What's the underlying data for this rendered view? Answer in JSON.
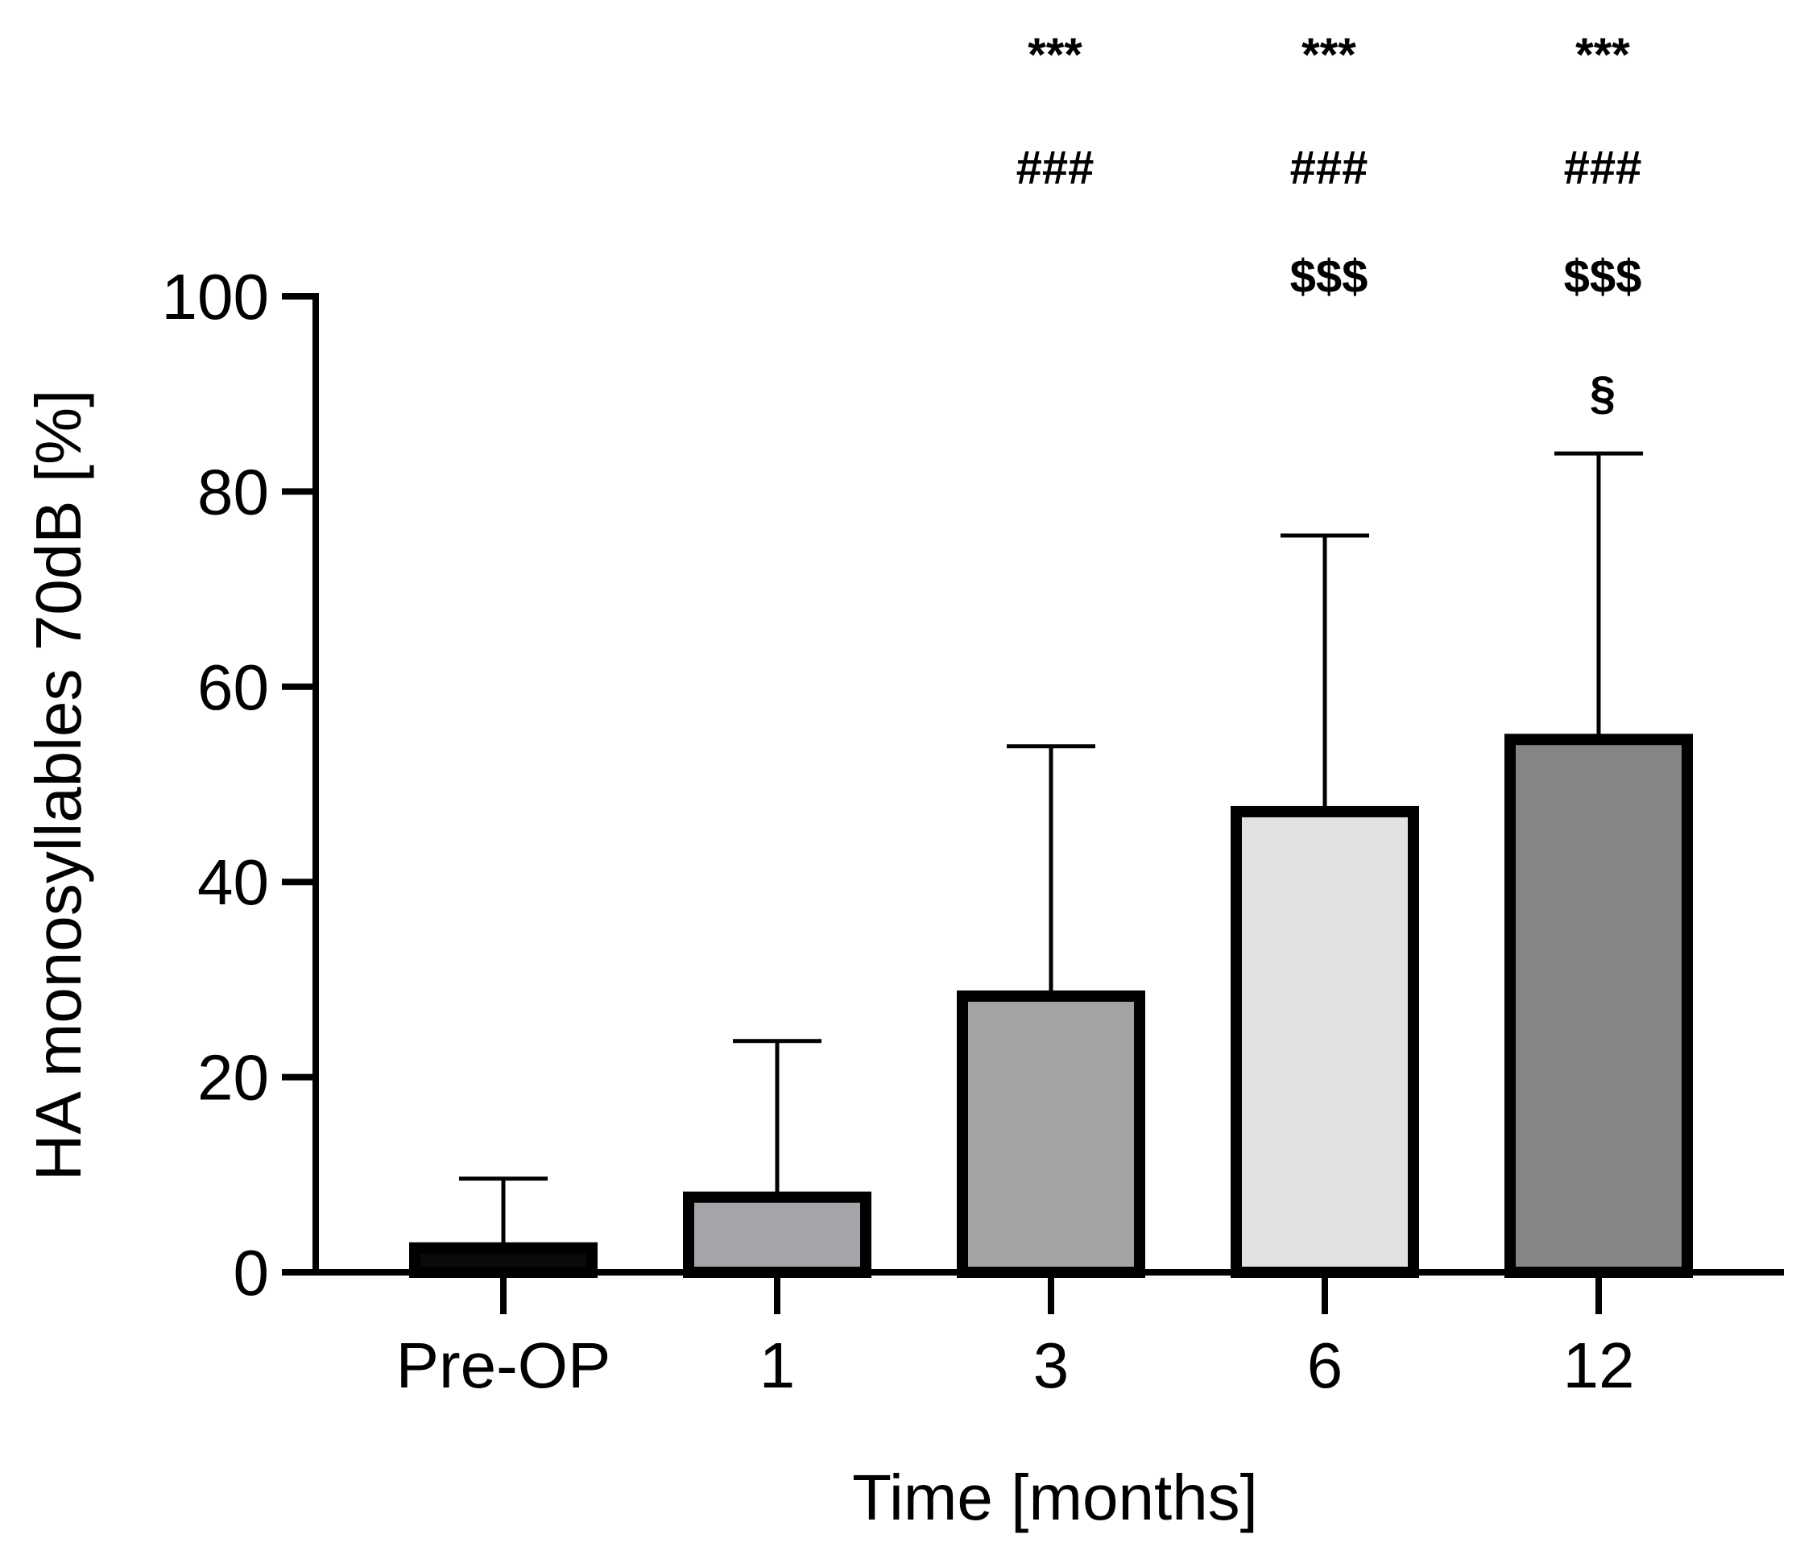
{
  "chart_data": {
    "type": "bar",
    "title": "",
    "xlabel": "Time [months]",
    "ylabel": "HA monosyllables 70dB [%]",
    "ylim": [
      0,
      100
    ],
    "yticks": [
      0,
      20,
      40,
      60,
      80,
      100
    ],
    "categories": [
      "Pre-OP",
      "1",
      "3",
      "6",
      "12"
    ],
    "values": [
      2.5,
      7.7,
      28.3,
      47.2,
      54.6
    ],
    "error_upper": [
      9.6,
      23.7,
      53.9,
      75.5,
      83.9
    ],
    "bar_colors": [
      "#0a0a0a",
      "#a4a5a9",
      "#a3a3a3",
      "#e1e1e1",
      "#858585"
    ],
    "significance": [
      [],
      [],
      [
        "***",
        "###"
      ],
      [
        "***",
        "###",
        "$$$"
      ],
      [
        "***",
        "###",
        "$$$",
        "§"
      ]
    ],
    "grid": false,
    "legend": "none"
  }
}
